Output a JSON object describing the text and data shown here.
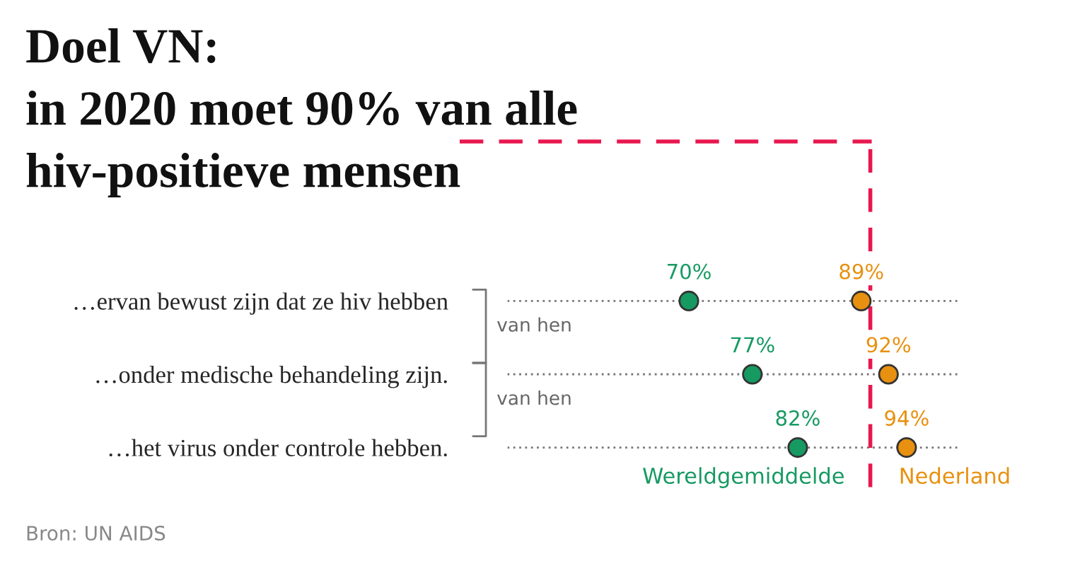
{
  "chart_data": {
    "type": "scatter",
    "title": "Doel VN:\nin 2020 moet 90% van alle\nhiv-positieve mensen",
    "categories": [
      "…ervan bewust zijn dat ze hiv hebben",
      "…onder medische behandeling zijn.",
      "…het virus onder controle hebben."
    ],
    "orientation": "horizontal",
    "series": [
      {
        "name": "Wereldgemiddelde",
        "color": "#169a62",
        "values": [
          70,
          77,
          82
        ],
        "value_labels": [
          "70%",
          "77%",
          "82%"
        ]
      },
      {
        "name": "Nederland",
        "color": "#e8900f",
        "values": [
          89,
          92,
          94
        ],
        "value_labels": [
          "89%",
          "92%",
          "94%"
        ]
      }
    ],
    "xlim": [
      50,
      100
    ],
    "tick_labels": "y",
    "grid": "y",
    "legend": false,
    "marker": "circle",
    "ref_lines": [
      {
        "axis": "x",
        "value": 90,
        "color": "#e8174f",
        "line_style": "dashed"
      }
    ],
    "annotations": [
      "van hen",
      "van hen",
      "Bron: UN AIDS"
    ]
  }
}
